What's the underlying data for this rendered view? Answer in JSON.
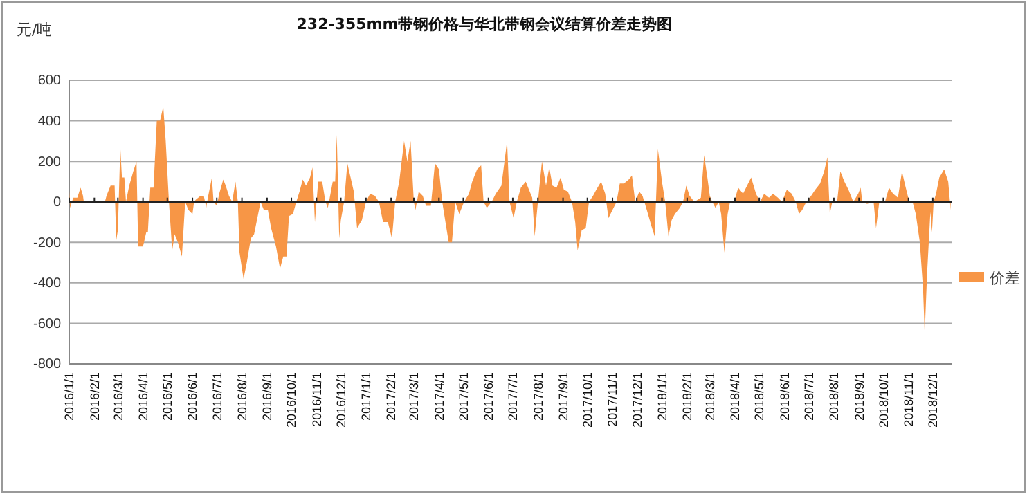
{
  "chart_data": {
    "type": "area",
    "title": "232-355mm带钢价格与华北带钢会议结算价差走势图",
    "ylabel": "元/吨",
    "xlim": [
      "2016-01-01",
      "2018-12-25"
    ],
    "xticks": [
      {
        "value": "2016-01-01",
        "label": "2016/1/1"
      },
      {
        "value": "2016-02-01",
        "label": "2016/2/1"
      },
      {
        "value": "2016-03-01",
        "label": "2016/3/1"
      },
      {
        "value": "2016-04-01",
        "label": "2016/4/1"
      },
      {
        "value": "2016-05-01",
        "label": "2016/5/1"
      },
      {
        "value": "2016-06-01",
        "label": "2016/6/1"
      },
      {
        "value": "2016-07-01",
        "label": "2016/7/1"
      },
      {
        "value": "2016-08-01",
        "label": "2016/8/1"
      },
      {
        "value": "2016-09-01",
        "label": "2016/9/1"
      },
      {
        "value": "2016-10-01",
        "label": "2016/10/1"
      },
      {
        "value": "2016-11-01",
        "label": "2016/11/1"
      },
      {
        "value": "2016-12-01",
        "label": "2016/12/1"
      },
      {
        "value": "2017-01-01",
        "label": "2017/1/1"
      },
      {
        "value": "2017-02-01",
        "label": "2017/2/1"
      },
      {
        "value": "2017-03-01",
        "label": "2017/3/1"
      },
      {
        "value": "2017-04-01",
        "label": "2017/4/1"
      },
      {
        "value": "2017-05-01",
        "label": "2017/5/1"
      },
      {
        "value": "2017-06-01",
        "label": "2017/6/1"
      },
      {
        "value": "2017-07-01",
        "label": "2017/7/1"
      },
      {
        "value": "2017-08-01",
        "label": "2017/8/1"
      },
      {
        "value": "2017-09-01",
        "label": "2017/9/1"
      },
      {
        "value": "2017-10-01",
        "label": "2017/10/1"
      },
      {
        "value": "2017-11-01",
        "label": "2017/11/1"
      },
      {
        "value": "2017-12-01",
        "label": "2017/12/1"
      },
      {
        "value": "2018-01-01",
        "label": "2018/1/1"
      },
      {
        "value": "2018-02-01",
        "label": "2018/2/1"
      },
      {
        "value": "2018-03-01",
        "label": "2018/3/1"
      },
      {
        "value": "2018-04-01",
        "label": "2018/4/1"
      },
      {
        "value": "2018-05-01",
        "label": "2018/5/1"
      },
      {
        "value": "2018-06-01",
        "label": "2018/6/1"
      },
      {
        "value": "2018-07-01",
        "label": "2018/7/1"
      },
      {
        "value": "2018-08-01",
        "label": "2018/8/1"
      },
      {
        "value": "2018-09-01",
        "label": "2018/9/1"
      },
      {
        "value": "2018-10-01",
        "label": "2018/10/1"
      },
      {
        "value": "2018-11-01",
        "label": "2018/11/1"
      },
      {
        "value": "2018-12-01",
        "label": "2018/12/1"
      }
    ],
    "ylim": [
      -800,
      600
    ],
    "yticks": [
      -800,
      -600,
      -400,
      -200,
      0,
      200,
      400,
      600
    ],
    "grid": "y",
    "legend": "right",
    "x": [
      "2016-01-01",
      "2016-01-02",
      "2016-01-06",
      "2016-01-11",
      "2016-01-15",
      "2016-01-18",
      "2016-01-19",
      "2016-02-14",
      "2016-02-16",
      "2016-02-21",
      "2016-02-26",
      "2016-02-28",
      "2016-03-01",
      "2016-03-04",
      "2016-03-06",
      "2016-03-09",
      "2016-03-11",
      "2016-03-15",
      "2016-03-20",
      "2016-03-24",
      "2016-03-26",
      "2016-04-01",
      "2016-04-05",
      "2016-04-07",
      "2016-04-10",
      "2016-04-14",
      "2016-04-18",
      "2016-04-22",
      "2016-04-26",
      "2016-04-29",
      "2016-05-03",
      "2016-05-07",
      "2016-05-10",
      "2016-05-14",
      "2016-05-19",
      "2016-05-23",
      "2016-05-27",
      "2016-06-01",
      "2016-06-03",
      "2016-06-05",
      "2016-06-11",
      "2016-06-15",
      "2016-06-18",
      "2016-06-20",
      "2016-06-25",
      "2016-06-27",
      "2016-07-01",
      "2016-07-04",
      "2016-07-09",
      "2016-07-12",
      "2016-07-16",
      "2016-07-20",
      "2016-07-24",
      "2016-07-27",
      "2016-07-29",
      "2016-08-03",
      "2016-08-07",
      "2016-08-12",
      "2016-08-16",
      "2016-08-20",
      "2016-08-24",
      "2016-08-28",
      "2016-09-02",
      "2016-09-06",
      "2016-09-12",
      "2016-09-17",
      "2016-09-21",
      "2016-09-25",
      "2016-09-28",
      "2016-10-03",
      "2016-10-07",
      "2016-10-11",
      "2016-10-15",
      "2016-10-19",
      "2016-10-24",
      "2016-10-27",
      "2016-10-30",
      "2016-11-03",
      "2016-11-08",
      "2016-11-12",
      "2016-11-15",
      "2016-11-21",
      "2016-11-24",
      "2016-11-26",
      "2016-11-29",
      "2016-12-01",
      "2016-12-05",
      "2016-12-09",
      "2016-12-13",
      "2016-12-17",
      "2016-12-21",
      "2016-12-27",
      "2017-01-01",
      "2017-01-06",
      "2017-01-12",
      "2017-01-17",
      "2017-01-22",
      "2017-01-28",
      "2017-02-02",
      "2017-02-06",
      "2017-02-11",
      "2017-02-17",
      "2017-02-21",
      "2017-02-25",
      "2017-03-01",
      "2017-03-03",
      "2017-03-07",
      "2017-03-12",
      "2017-03-16",
      "2017-03-22",
      "2017-03-27",
      "2017-04-01",
      "2017-04-05",
      "2017-04-09",
      "2017-04-13",
      "2017-04-17",
      "2017-04-21",
      "2017-04-26",
      "2017-05-02",
      "2017-05-08",
      "2017-05-12",
      "2017-05-18",
      "2017-05-23",
      "2017-05-26",
      "2017-05-30",
      "2017-06-05",
      "2017-06-10",
      "2017-06-17",
      "2017-06-24",
      "2017-06-27",
      "2017-07-02",
      "2017-07-06",
      "2017-07-11",
      "2017-07-17",
      "2017-07-21",
      "2017-07-25",
      "2017-07-28",
      "2017-08-01",
      "2017-08-03",
      "2017-08-06",
      "2017-08-11",
      "2017-08-15",
      "2017-08-19",
      "2017-08-24",
      "2017-08-29",
      "2017-09-02",
      "2017-09-07",
      "2017-09-12",
      "2017-09-16",
      "2017-09-19",
      "2017-09-24",
      "2017-09-29",
      "2017-10-03",
      "2017-10-08",
      "2017-10-12",
      "2017-10-18",
      "2017-10-23",
      "2017-10-27",
      "2017-11-01",
      "2017-11-06",
      "2017-11-10",
      "2017-11-15",
      "2017-11-21",
      "2017-11-25",
      "2017-11-29",
      "2017-12-04",
      "2017-12-08",
      "2017-12-14",
      "2017-12-19",
      "2017-12-23",
      "2017-12-27",
      "2018-01-01",
      "2018-01-05",
      "2018-01-09",
      "2018-01-13",
      "2018-01-17",
      "2018-01-23",
      "2018-01-27",
      "2018-01-31",
      "2018-02-04",
      "2018-02-10",
      "2018-02-18",
      "2018-02-22",
      "2018-02-26",
      "2018-03-01",
      "2018-03-04",
      "2018-03-08",
      "2018-03-12",
      "2018-03-15",
      "2018-03-19",
      "2018-03-23",
      "2018-03-26",
      "2018-03-31",
      "2018-04-05",
      "2018-04-11",
      "2018-04-16",
      "2018-04-21",
      "2018-04-27",
      "2018-05-02",
      "2018-05-07",
      "2018-05-13",
      "2018-05-18",
      "2018-05-24",
      "2018-05-29",
      "2018-06-04",
      "2018-06-10",
      "2018-06-15",
      "2018-06-19",
      "2018-06-23",
      "2018-06-28",
      "2018-07-04",
      "2018-07-09",
      "2018-07-15",
      "2018-07-20",
      "2018-07-24",
      "2018-07-27",
      "2018-07-30",
      "2018-08-05",
      "2018-08-09",
      "2018-08-14",
      "2018-08-19",
      "2018-08-25",
      "2018-08-31",
      "2018-09-03",
      "2018-09-05",
      "2018-09-11",
      "2018-09-19",
      "2018-09-22",
      "2018-09-26",
      "2018-10-03",
      "2018-10-08",
      "2018-10-13",
      "2018-10-19",
      "2018-10-24",
      "2018-10-28",
      "2018-11-02",
      "2018-11-06",
      "2018-11-10",
      "2018-11-15",
      "2018-11-19",
      "2018-11-21",
      "2018-11-24",
      "2018-11-28",
      "2018-11-30",
      "2018-12-02",
      "2018-12-05",
      "2018-12-09",
      "2018-12-15",
      "2018-12-20",
      "2018-12-23"
    ],
    "series": [
      {
        "name": "价差",
        "color": "#f79646",
        "values": [
          50,
          -30,
          20,
          20,
          70,
          30,
          0,
          0,
          30,
          80,
          80,
          -190,
          -140,
          270,
          120,
          120,
          0,
          80,
          150,
          200,
          -220,
          -220,
          -150,
          -150,
          70,
          70,
          400,
          400,
          470,
          300,
          0,
          -240,
          -160,
          -200,
          -270,
          0,
          -40,
          -60,
          0,
          10,
          30,
          30,
          -30,
          20,
          120,
          0,
          -20,
          40,
          110,
          80,
          30,
          0,
          100,
          0,
          -250,
          -380,
          -300,
          -180,
          -160,
          -80,
          0,
          -40,
          -40,
          -130,
          -220,
          -330,
          -270,
          -270,
          -70,
          -60,
          0,
          50,
          110,
          80,
          120,
          170,
          -100,
          100,
          100,
          0,
          -30,
          100,
          100,
          330,
          -180,
          -90,
          0,
          190,
          120,
          50,
          -130,
          -90,
          0,
          40,
          30,
          0,
          -100,
          -100,
          -180,
          0,
          100,
          300,
          200,
          300,
          0,
          -40,
          50,
          30,
          -20,
          -20,
          190,
          160,
          0,
          -100,
          -200,
          -200,
          0,
          -60,
          0,
          40,
          100,
          160,
          180,
          0,
          -30,
          0,
          40,
          80,
          300,
          0,
          -80,
          0,
          70,
          100,
          60,
          20,
          -170,
          0,
          80,
          200,
          80,
          170,
          80,
          70,
          120,
          60,
          50,
          0,
          -100,
          -240,
          -140,
          -130,
          0,
          30,
          60,
          100,
          40,
          -80,
          -40,
          0,
          90,
          90,
          110,
          130,
          0,
          50,
          30,
          -50,
          -120,
          -170,
          260,
          100,
          0,
          -170,
          -90,
          -60,
          -30,
          0,
          80,
          30,
          0,
          20,
          230,
          120,
          30,
          0,
          -30,
          0,
          -60,
          -250,
          -60,
          0,
          0,
          70,
          40,
          80,
          120,
          40,
          0,
          40,
          20,
          40,
          20,
          0,
          60,
          40,
          0,
          -60,
          -40,
          0,
          30,
          60,
          90,
          150,
          220,
          -60,
          0,
          0,
          150,
          100,
          60,
          0,
          40,
          70,
          0,
          -10,
          0,
          -130,
          0,
          0,
          70,
          40,
          20,
          150,
          80,
          0,
          0,
          -60,
          -200,
          -430,
          -650,
          -350,
          -50,
          -150,
          0,
          40,
          120,
          160,
          100,
          -40
        ]
      }
    ]
  }
}
